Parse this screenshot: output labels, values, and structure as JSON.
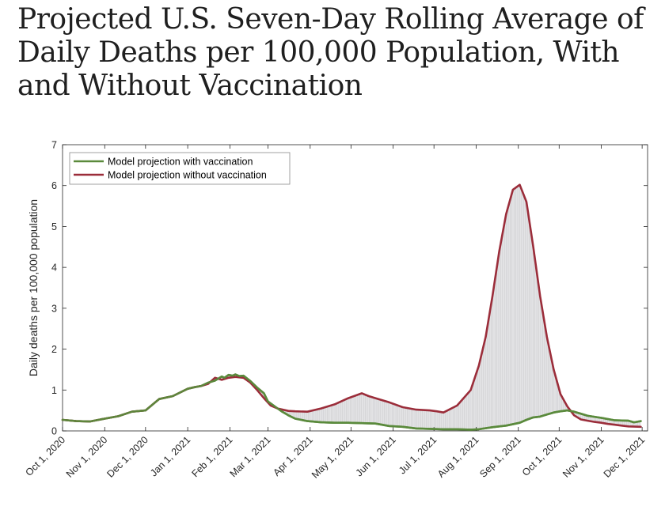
{
  "chart_data": {
    "type": "area",
    "title": "Projected U.S. Seven-Day Rolling Average of Daily Deaths per 100,000 Population, With and Without Vaccination",
    "xlabel": "",
    "ylabel": "Daily deaths per 100,000 population",
    "ylim": [
      0,
      7
    ],
    "yticks": [
      "0",
      "1",
      "2",
      "3",
      "4",
      "5",
      "6",
      "7"
    ],
    "x_tick_labels": [
      "Oct 1, 2020",
      "Nov 1, 2020",
      "Dec 1, 2020",
      "Jan 1, 2021",
      "Feb 1, 2021",
      "Mar 1, 2021",
      "Apr 1, 2021",
      "May 1, 2021",
      "Jun 1, 2021",
      "Jul 1, 2021",
      "Aug 1, 2021",
      "Sep 1, 2021",
      "Oct 1, 2021",
      "Nov 1, 2021",
      "Dec 1, 2021"
    ],
    "x_unit": "days since Oct 1, 2020",
    "xlim": [
      0,
      430
    ],
    "shaded_between_series": true,
    "legend_position": "top-left",
    "series": [
      {
        "name": "Model projection with vaccination",
        "color": "#5b8a3c",
        "x": [
          0,
          10,
          20,
          31,
          41,
          51,
          61,
          71,
          81,
          92,
          97,
          102,
          107,
          112,
          117,
          119,
          122,
          125,
          127,
          130,
          133,
          138,
          143,
          148,
          151,
          156,
          161,
          166,
          171,
          180,
          190,
          200,
          210,
          220,
          230,
          240,
          250,
          260,
          270,
          280,
          290,
          300,
          306,
          316,
          326,
          336,
          341,
          346,
          351,
          356,
          361,
          366,
          371,
          376,
          381,
          386,
          396,
          406,
          416,
          420,
          425
        ],
        "y": [
          0.27,
          0.24,
          0.23,
          0.3,
          0.36,
          0.47,
          0.5,
          0.78,
          0.85,
          1.03,
          1.07,
          1.1,
          1.18,
          1.23,
          1.33,
          1.3,
          1.37,
          1.35,
          1.38,
          1.34,
          1.35,
          1.22,
          1.06,
          0.92,
          0.72,
          0.6,
          0.48,
          0.38,
          0.3,
          0.24,
          0.21,
          0.2,
          0.2,
          0.19,
          0.18,
          0.12,
          0.1,
          0.06,
          0.05,
          0.04,
          0.04,
          0.03,
          0.04,
          0.09,
          0.13,
          0.2,
          0.27,
          0.33,
          0.35,
          0.4,
          0.45,
          0.48,
          0.5,
          0.47,
          0.42,
          0.37,
          0.32,
          0.26,
          0.25,
          0.21,
          0.24
        ]
      },
      {
        "name": "Model projection without vaccination",
        "color": "#9b2d3a",
        "x": [
          0,
          10,
          20,
          31,
          41,
          51,
          61,
          71,
          81,
          92,
          97,
          102,
          107,
          112,
          117,
          122,
          127,
          133,
          138,
          143,
          148,
          153,
          158,
          166,
          171,
          180,
          190,
          200,
          210,
          220,
          225,
          230,
          240,
          250,
          260,
          270,
          275,
          280,
          290,
          300,
          306,
          311,
          316,
          321,
          326,
          331,
          336,
          341,
          346,
          351,
          356,
          361,
          366,
          371,
          376,
          381,
          386,
          391,
          396,
          401,
          406,
          411,
          416,
          425
        ],
        "y": [
          0.27,
          0.24,
          0.23,
          0.3,
          0.36,
          0.47,
          0.5,
          0.78,
          0.85,
          1.03,
          1.07,
          1.1,
          1.15,
          1.3,
          1.25,
          1.3,
          1.32,
          1.3,
          1.18,
          1.0,
          0.8,
          0.62,
          0.55,
          0.49,
          0.48,
          0.47,
          0.55,
          0.65,
          0.8,
          0.92,
          0.85,
          0.8,
          0.7,
          0.58,
          0.52,
          0.5,
          0.48,
          0.45,
          0.62,
          1.0,
          1.6,
          2.3,
          3.3,
          4.4,
          5.3,
          5.9,
          6.02,
          5.6,
          4.5,
          3.3,
          2.3,
          1.5,
          0.9,
          0.6,
          0.38,
          0.28,
          0.25,
          0.22,
          0.2,
          0.17,
          0.15,
          0.13,
          0.11,
          0.1
        ]
      }
    ]
  }
}
